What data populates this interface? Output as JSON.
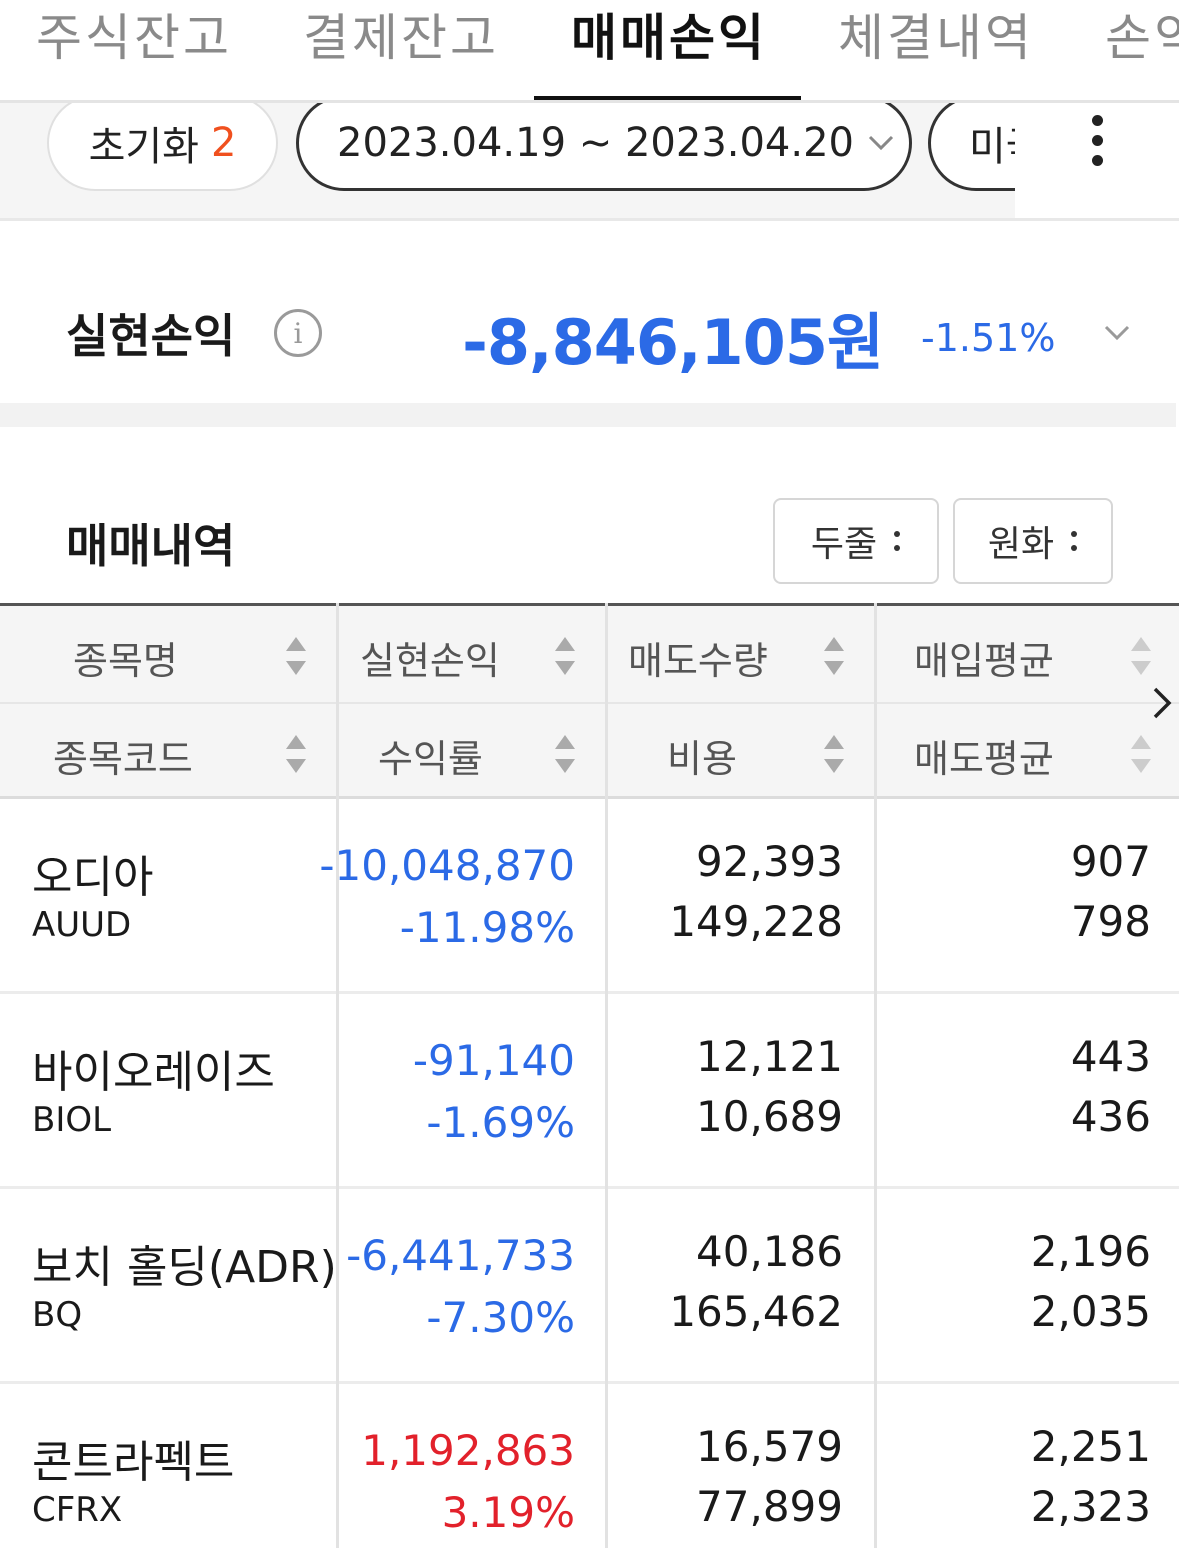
{
  "tabs": [
    {
      "label": "주식잔고"
    },
    {
      "label": "결제잔고"
    },
    {
      "label": "매매손익"
    },
    {
      "label": "체결내역"
    },
    {
      "label": "손익"
    }
  ],
  "active_tab": "매매손익",
  "filters": {
    "reset_label": "초기화",
    "reset_count": "2",
    "date_range": "2023.04.19 ~ 2023.04.20",
    "market": "미국"
  },
  "summary": {
    "label": "실현손익",
    "value": "-8,846,105원",
    "rate": "-1.51%"
  },
  "history": {
    "title": "매매내역",
    "rows_option": "두줄",
    "currency_option": "원화"
  },
  "table": {
    "headers": {
      "col1_top": "종목명",
      "col1_bottom": "종목코드",
      "col2_top": "실현손익",
      "col2_bottom": "수익률",
      "col3_top": "매도수량",
      "col3_bottom": "비용",
      "col4_top": "매입평균",
      "col4_bottom": "매도평균"
    },
    "rows": [
      {
        "name": "오디아",
        "code": "AUUD",
        "pl": "-10,048,870",
        "rate": "-11.98%",
        "qty": "92,393",
        "cost": "149,228",
        "buy_avg": "907",
        "sell_avg": "798"
      },
      {
        "name": "바이오레이즈",
        "code": "BIOL",
        "pl": "-91,140",
        "rate": "-1.69%",
        "qty": "12,121",
        "cost": "10,689",
        "buy_avg": "443",
        "sell_avg": "436"
      },
      {
        "name": "보치 홀딩(ADR)",
        "code": "BQ",
        "pl": "-6,441,733",
        "rate": "-7.30%",
        "qty": "40,186",
        "cost": "165,462",
        "buy_avg": "2,196",
        "sell_avg": "2,035"
      },
      {
        "name": "콘트라펙트",
        "code": "CFRX",
        "pl": "1,192,863",
        "rate": "3.19%",
        "qty": "16,579",
        "cost": "77,899",
        "buy_avg": "2,251",
        "sell_avg": "2,323"
      }
    ]
  },
  "colors": {
    "negative": "#2b6ae6",
    "positive": "#e2212b",
    "accent_count": "#f0501e"
  }
}
